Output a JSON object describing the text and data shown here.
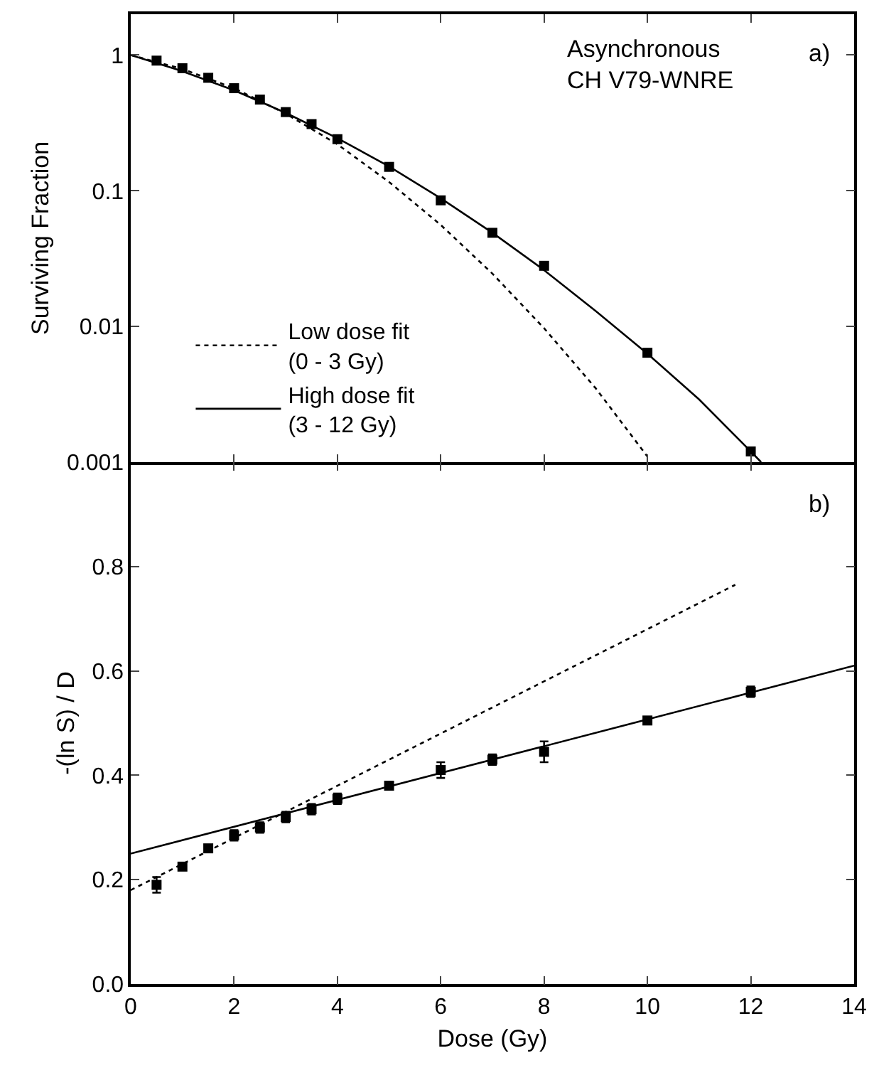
{
  "chart_data": [
    {
      "type": "scatter",
      "ylabel": "Surviving Fraction",
      "log": "y",
      "xlim": [
        0,
        14
      ],
      "xticks": [
        0,
        2,
        4,
        6,
        8,
        10,
        12,
        14
      ],
      "ylim": [
        0.001,
        2
      ],
      "yticks": [
        1,
        0.1,
        0.01,
        0.001
      ],
      "tick_labels": "y",
      "grid": false,
      "legend": "bottom left",
      "marker": "square",
      "annotations": [
        "Asynchronous\nCH V79-WNRE",
        "a)"
      ],
      "series": [
        {
          "color": "#000000",
          "x": [
            0.5,
            1,
            1.5,
            2,
            2.5,
            3,
            3.5,
            4,
            5,
            6,
            7,
            8,
            10,
            12
          ],
          "values": [
            0.91,
            0.8,
            0.68,
            0.57,
            0.47,
            0.38,
            0.31,
            0.24,
            0.15,
            0.085,
            0.049,
            0.028,
            0.0064,
            0.0012
          ]
        },
        {
          "type": "line",
          "name": "Low dose fit\n(0 - 3 Gy)",
          "color": "#000000",
          "line_style": "dotted",
          "marker": "none",
          "x": [
            0,
            1,
            2,
            3,
            4,
            5,
            6,
            7,
            8,
            9,
            10
          ],
          "values": [
            1,
            0.79,
            0.57,
            0.37,
            0.22,
            0.116,
            0.056,
            0.0245,
            0.0097,
            0.0035,
            0.0011
          ]
        },
        {
          "type": "line",
          "name": "High dose fit\n(3 - 12 Gy)",
          "color": "#000000",
          "line_style": "solid",
          "marker": "none",
          "x": [
            0,
            1,
            2,
            3,
            4,
            5,
            6,
            7,
            8,
            9,
            10,
            11,
            12,
            12.2
          ],
          "values": [
            1,
            0.76,
            0.55,
            0.375,
            0.244,
            0.151,
            0.088,
            0.049,
            0.026,
            0.013,
            0.0063,
            0.0029,
            0.0012,
            0.001
          ]
        }
      ]
    },
    {
      "type": "scatter",
      "xlabel": "Dose (Gy)",
      "ylabel": "-(ln S) / D",
      "xlim": [
        0,
        14
      ],
      "xticks": [
        0,
        2,
        4,
        6,
        8,
        10,
        12,
        14
      ],
      "ylim": [
        0,
        1
      ],
      "yticks": [
        {
          "value": 0,
          "label": "0.0"
        },
        0.2,
        0.4,
        0.6,
        0.8,
        {
          "value": 1,
          "label": null
        }
      ],
      "grid": false,
      "legend": false,
      "marker": "square",
      "annotations": [
        "b)"
      ],
      "series": [
        {
          "color": "#000000",
          "x": [
            0.5,
            1,
            1.5,
            2,
            2.5,
            3,
            3.5,
            4,
            5,
            6,
            7,
            8,
            10,
            12
          ],
          "values": [
            0.19,
            0.225,
            0.26,
            0.285,
            0.3,
            0.32,
            0.335,
            0.355,
            0.38,
            0.41,
            0.43,
            0.445,
            0.505,
            0.56
          ],
          "errors": [
            0.015,
            null,
            null,
            0.01,
            0.01,
            0.01,
            0.01,
            0.01,
            null,
            0.015,
            0.01,
            0.02,
            null,
            0.01
          ]
        },
        {
          "type": "line",
          "color": "#000000",
          "line_style": "dotted",
          "marker": "none",
          "x": [
            0,
            11.7
          ],
          "values": [
            0.18,
            0.765
          ]
        },
        {
          "type": "line",
          "color": "#000000",
          "line_style": "solid",
          "marker": "none",
          "x": [
            0,
            14
          ],
          "values": [
            0.25,
            0.61
          ]
        }
      ]
    }
  ]
}
